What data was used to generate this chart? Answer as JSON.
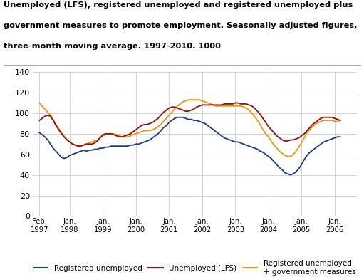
{
  "title_line1": "Unemployed (LFS), registered unemployed and registered unemployed plus",
  "title_line2": "government measures to promote employment. Seasonally adjusted figures,",
  "title_line3": "three-month moving average. 1997-2010. 1000",
  "background_color": "#ffffff",
  "grid_color": "#cccccc",
  "ylim": [
    0,
    140
  ],
  "yticks": [
    0,
    20,
    40,
    60,
    80,
    100,
    120,
    140
  ],
  "legend_labels": [
    "Registered unemployed",
    "Unemployed (LFS)",
    "Registered unemployed\n+ government measures"
  ],
  "line_colors": [
    "#1e3a7a",
    "#8b1010",
    "#e8960c"
  ],
  "registered_unemployed": [
    81,
    79,
    77,
    74,
    70,
    66,
    63,
    60,
    57,
    56,
    57,
    59,
    60,
    61,
    62,
    63,
    64,
    63,
    64,
    64,
    65,
    65,
    66,
    66,
    67,
    67,
    68,
    68,
    68,
    68,
    68,
    68,
    68,
    69,
    69,
    70,
    70,
    71,
    72,
    73,
    74,
    76,
    78,
    80,
    83,
    86,
    88,
    91,
    93,
    95,
    96,
    96,
    96,
    95,
    94,
    94,
    93,
    93,
    92,
    91,
    90,
    88,
    86,
    84,
    82,
    80,
    78,
    76,
    75,
    74,
    73,
    72,
    72,
    71,
    70,
    69,
    68,
    67,
    66,
    65,
    63,
    62,
    60,
    58,
    56,
    53,
    50,
    47,
    45,
    42,
    41,
    40,
    41,
    43,
    46,
    50,
    55,
    59,
    62,
    64,
    66,
    68,
    70,
    72,
    73,
    74,
    75,
    76,
    77,
    77
  ],
  "lfs_unemployed": [
    93,
    95,
    97,
    98,
    97,
    93,
    88,
    84,
    80,
    77,
    74,
    72,
    70,
    69,
    68,
    68,
    69,
    70,
    70,
    70,
    71,
    73,
    76,
    79,
    80,
    80,
    80,
    79,
    78,
    77,
    77,
    78,
    79,
    80,
    82,
    84,
    86,
    88,
    89,
    89,
    90,
    91,
    93,
    95,
    98,
    101,
    103,
    105,
    106,
    106,
    105,
    104,
    103,
    102,
    102,
    103,
    104,
    106,
    107,
    108,
    108,
    108,
    108,
    108,
    108,
    108,
    108,
    109,
    109,
    109,
    109,
    110,
    110,
    109,
    109,
    109,
    108,
    107,
    105,
    102,
    99,
    95,
    91,
    87,
    84,
    81,
    78,
    76,
    74,
    73,
    73,
    74,
    74,
    75,
    76,
    78,
    80,
    83,
    86,
    89,
    91,
    93,
    95,
    96,
    96,
    96,
    96,
    95,
    94,
    93
  ],
  "registered_plus_govt": [
    110,
    107,
    104,
    101,
    98,
    94,
    89,
    85,
    81,
    77,
    74,
    72,
    70,
    69,
    68,
    68,
    69,
    70,
    71,
    72,
    73,
    74,
    76,
    78,
    79,
    80,
    80,
    80,
    79,
    78,
    77,
    77,
    77,
    78,
    79,
    80,
    81,
    82,
    83,
    83,
    83,
    84,
    85,
    87,
    89,
    92,
    95,
    98,
    101,
    104,
    107,
    109,
    111,
    112,
    113,
    113,
    113,
    113,
    113,
    112,
    111,
    110,
    109,
    108,
    107,
    107,
    107,
    107,
    107,
    107,
    107,
    107,
    107,
    107,
    106,
    105,
    103,
    100,
    97,
    93,
    89,
    84,
    80,
    77,
    73,
    69,
    66,
    63,
    61,
    59,
    58,
    58,
    60,
    63,
    67,
    71,
    76,
    81,
    84,
    87,
    89,
    91,
    92,
    93,
    93,
    93,
    93,
    92,
    92,
    93
  ]
}
